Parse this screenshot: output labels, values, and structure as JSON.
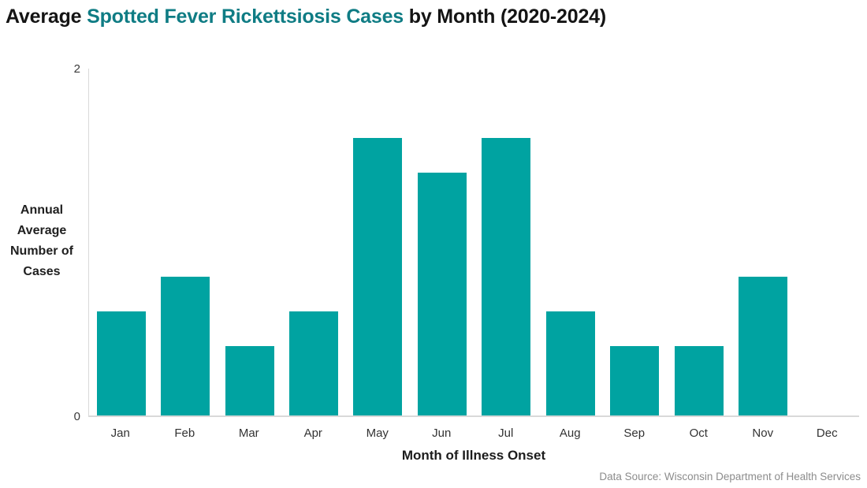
{
  "title": {
    "prefix": "Average ",
    "highlight": "Spotted Fever Rickettsiosis Cases",
    "suffix": " by Month (2020-2024)"
  },
  "y_axis": {
    "title": "Annual\nAverage\nNumber of\nCases",
    "max_label": "2",
    "min_label": "0"
  },
  "x_axis": {
    "title": "Month of Illness Onset"
  },
  "source": "Data Source: Wisconsin Department of Health Services",
  "colors": {
    "bar": "#00A3A1",
    "title_highlight": "#0F7C84",
    "axis_line": "#D9D9D9",
    "source_text": "#8C8C8C"
  },
  "chart_data": {
    "type": "bar",
    "categories": [
      "Jan",
      "Feb",
      "Mar",
      "Apr",
      "May",
      "Jun",
      "Jul",
      "Aug",
      "Sep",
      "Oct",
      "Nov",
      "Dec"
    ],
    "values": [
      0.6,
      0.8,
      0.4,
      0.6,
      1.6,
      1.4,
      1.6,
      0.6,
      0.4,
      0.4,
      0.8,
      0
    ],
    "title": "Average Spotted Fever Rickettsiosis Cases by Month (2020-2024)",
    "xlabel": "Month of Illness Onset",
    "ylabel": "Annual Average Number of Cases",
    "ylim": [
      0,
      2
    ],
    "yticks": [
      0,
      2
    ],
    "grid": false,
    "legend": false,
    "bar_color": "#00A3A1"
  }
}
